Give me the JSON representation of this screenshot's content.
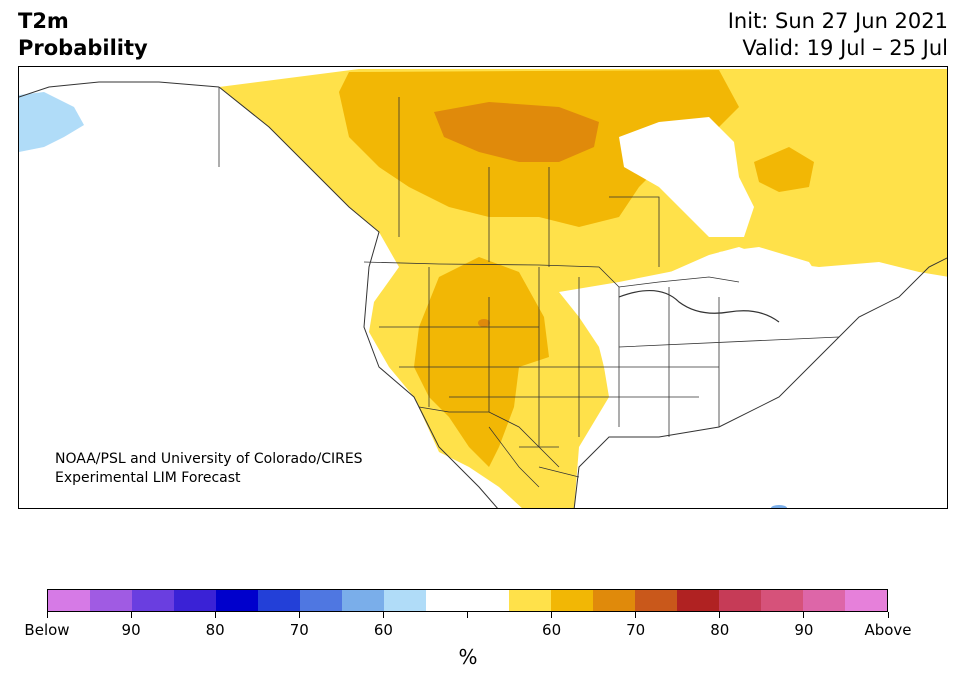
{
  "title": {
    "line1": "T2m",
    "line2": "Probability"
  },
  "header_right": {
    "init": "Init: Sun 27 Jun 2021",
    "valid": "Valid: 19 Jul – 25 Jul"
  },
  "credit": {
    "line1": "NOAA/PSL and University of Colorado/CIRES",
    "line2": "Experimental LIM Forecast"
  },
  "colorbar": {
    "colors": [
      "#d67ae6",
      "#a05be3",
      "#6a3ee0",
      "#3a22d6",
      "#0000cc",
      "#2340d8",
      "#4f77e1",
      "#7aaeea",
      "#b0dcf8",
      "#ffffff",
      "#ffffff",
      "#ffe14a",
      "#f2b705",
      "#e08a0b",
      "#c9581b",
      "#b02222",
      "#c63b57",
      "#d6527a",
      "#dd66a8",
      "#e680da"
    ],
    "tick_labels": [
      "Below",
      "90",
      "80",
      "70",
      "60",
      "",
      "60",
      "70",
      "80",
      "90",
      "Above"
    ],
    "unit": "%"
  },
  "map_colors": {
    "light_yellow": "#ffe14a",
    "orange_yellow": "#f2b705",
    "dark_orange": "#e08a0b",
    "light_blue": "#b0dcf8",
    "border": "#333333"
  }
}
